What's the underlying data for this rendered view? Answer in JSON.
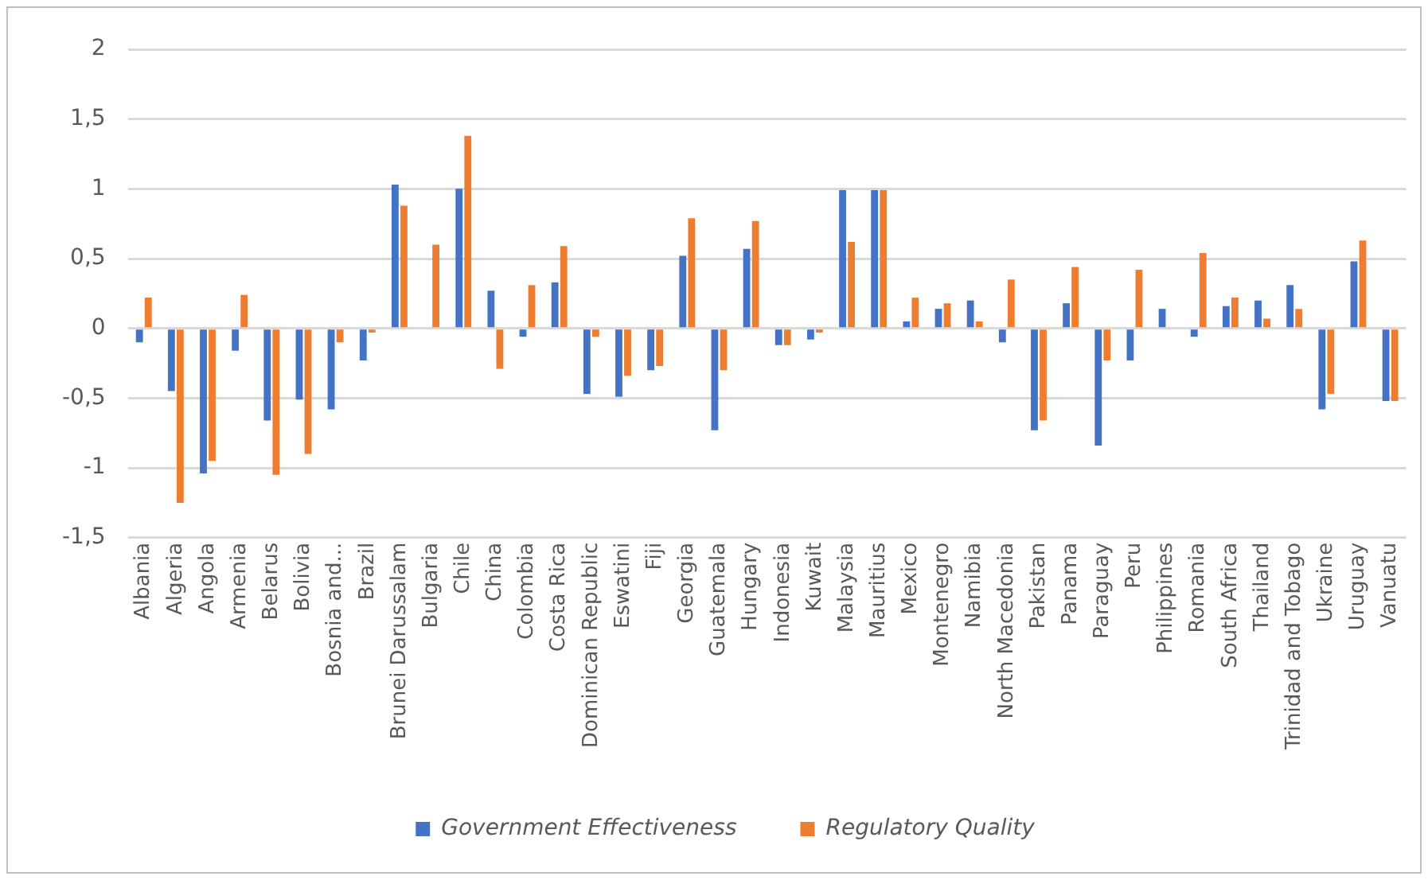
{
  "chart_data": {
    "type": "bar",
    "categories": [
      "Albania",
      "Algeria",
      "Angola",
      "Armenia",
      "Belarus",
      "Bolivia",
      "Bosnia and...",
      "Brazil",
      "Brunei Darussalam",
      "Bulgaria",
      "Chile",
      "China",
      "Colombia",
      "Costa Rica",
      "Dominican Republic",
      "Eswatini",
      "Fiji",
      "Georgia",
      "Guatemala",
      "Hungary",
      "Indonesia",
      "Kuwait",
      "Malaysia",
      "Mauritius",
      "Mexico",
      "Montenegro",
      "Namibia",
      "North Macedonia",
      "Pakistan",
      "Panama",
      "Paraguay",
      "Peru",
      "Philippines",
      "Romania",
      "South Africa",
      "Thailand",
      "Trinidad and Tobago",
      "Ukraine",
      "Uruguay",
      "Vanuatu"
    ],
    "series": [
      {
        "name": "Government Effectiveness",
        "color": "#4472c4",
        "values": [
          -0.1,
          -0.45,
          -1.04,
          -0.16,
          -0.66,
          -0.51,
          -0.58,
          -0.23,
          1.03,
          null,
          1.0,
          0.27,
          -0.06,
          0.33,
          -0.47,
          -0.49,
          -0.3,
          0.52,
          -0.73,
          0.57,
          -0.12,
          -0.08,
          0.99,
          0.99,
          0.05,
          0.14,
          0.2,
          -0.1,
          -0.73,
          0.18,
          -0.84,
          -0.23,
          0.14,
          -0.06,
          0.16,
          0.2,
          0.31,
          -0.58,
          0.48,
          -0.52
        ]
      },
      {
        "name": "Regulatory Quality",
        "color": "#ed7d31",
        "values": [
          0.22,
          -1.25,
          -0.95,
          0.24,
          -1.05,
          -0.9,
          -0.1,
          -0.03,
          0.88,
          0.6,
          1.38,
          -0.29,
          0.31,
          0.59,
          -0.06,
          -0.34,
          -0.27,
          0.79,
          -0.3,
          0.77,
          -0.12,
          -0.03,
          0.62,
          0.99,
          0.22,
          0.18,
          0.05,
          0.35,
          -0.66,
          0.44,
          -0.23,
          0.42,
          null,
          0.54,
          0.22,
          0.07,
          0.14,
          -0.47,
          0.63,
          -0.52
        ]
      }
    ],
    "ylim": [
      -1.5,
      2
    ],
    "yticks": [
      {
        "value": -1.5,
        "label": "-1,5"
      },
      -1,
      {
        "value": -0.5,
        "label": "-0,5"
      },
      0,
      {
        "value": 0.5,
        "label": "0,5"
      },
      1,
      {
        "value": 1.5,
        "label": "1,5"
      },
      2
    ],
    "grid": "y",
    "legend": "bottom"
  }
}
